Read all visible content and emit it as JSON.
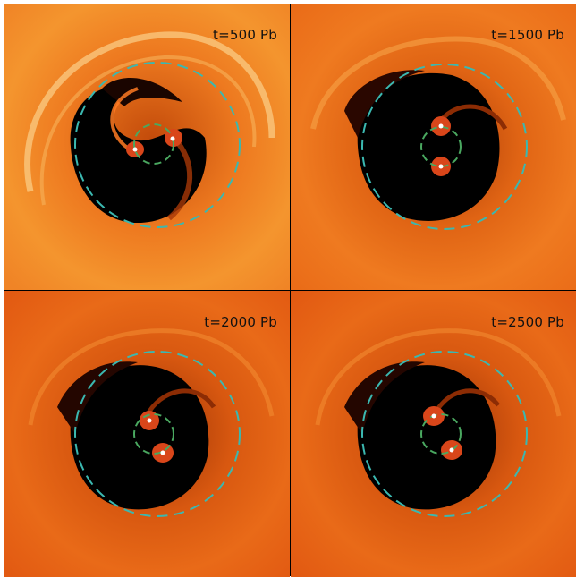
{
  "figure": {
    "panels": [
      {
        "label": "t=500 Pb",
        "bg": "#f28a2a",
        "cavity": "#000000"
      },
      {
        "label": "t=1500 Pb",
        "bg": "#ec6c18",
        "cavity": "#000000"
      },
      {
        "label": "t=2000 Pb",
        "bg": "#e65a12",
        "cavity": "#000000"
      },
      {
        "label": "t=2500 Pb",
        "bg": "#e65a12",
        "cavity": "#000000"
      }
    ],
    "colors": {
      "outer_circle": "#3bb8b0",
      "inner_circle": "#4aa860",
      "stars": "#ffffff",
      "streams": "#ff6a1a"
    }
  }
}
